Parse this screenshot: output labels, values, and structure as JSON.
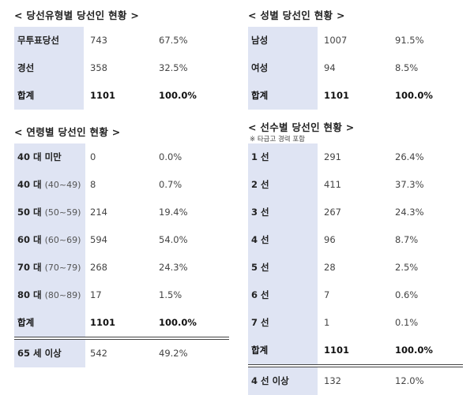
{
  "type_table": {
    "title": "< 당선유형별 당선인 현황 >",
    "rows": [
      {
        "label": "무투표당선",
        "count": "743",
        "pct": "67.5%"
      },
      {
        "label": "경선",
        "count": "358",
        "pct": "32.5%"
      }
    ],
    "total": {
      "label": "합계",
      "count": "1101",
      "pct": "100.0%"
    }
  },
  "gender_table": {
    "title": "< 성별 당선인 현황 >",
    "rows": [
      {
        "label": "남성",
        "count": "1007",
        "pct": "91.5%"
      },
      {
        "label": "여성",
        "count": "94",
        "pct": "8.5%"
      }
    ],
    "total": {
      "label": "합계",
      "count": "1101",
      "pct": "100.0%"
    }
  },
  "age_table": {
    "title": "< 연령별 당선인 현황 >",
    "rows": [
      {
        "label": "40 대 미만",
        "sub": "",
        "count": "0",
        "pct": "0.0%"
      },
      {
        "label": "40 대",
        "sub": "(40~49)",
        "count": "8",
        "pct": "0.7%"
      },
      {
        "label": "50 대",
        "sub": "(50~59)",
        "count": "214",
        "pct": "19.4%"
      },
      {
        "label": "60 대",
        "sub": "(60~69)",
        "count": "594",
        "pct": "54.0%"
      },
      {
        "label": "70 대",
        "sub": "(70~79)",
        "count": "268",
        "pct": "24.3%"
      },
      {
        "label": "80 대",
        "sub": "(80~89)",
        "count": "17",
        "pct": "1.5%"
      }
    ],
    "total": {
      "label": "합계",
      "count": "1101",
      "pct": "100.0%"
    },
    "extra": {
      "label": "65 세 이상",
      "count": "542",
      "pct": "49.2%"
    }
  },
  "term_table": {
    "title": "< 선수별 당선인 현황 >",
    "note": "※ 타급고 경력 포함",
    "rows": [
      {
        "label": "1 선",
        "count": "291",
        "pct": "26.4%"
      },
      {
        "label": "2 선",
        "count": "411",
        "pct": "37.3%"
      },
      {
        "label": "3 선",
        "count": "267",
        "pct": "24.3%"
      },
      {
        "label": "4 선",
        "count": "96",
        "pct": "8.7%"
      },
      {
        "label": "5 선",
        "count": "28",
        "pct": "2.5%"
      },
      {
        "label": "6 선",
        "count": "7",
        "pct": "0.6%"
      },
      {
        "label": "7 선",
        "count": "1",
        "pct": "0.1%"
      }
    ],
    "total": {
      "label": "합계",
      "count": "1101",
      "pct": "100.0%"
    },
    "extra": {
      "label": "4 선 이상",
      "count": "132",
      "pct": "12.0%"
    }
  }
}
